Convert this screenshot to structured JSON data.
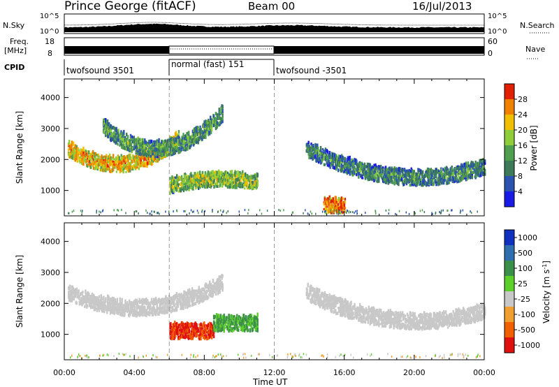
{
  "header": {
    "station": "Prince George (fitACF)",
    "beam": "Beam 00",
    "date": "16/Jul/2013"
  },
  "noise_panel": {
    "left_label": "N.Sky",
    "right_label": "N.Search",
    "left_ticks": [
      "10^5",
      "10^0"
    ],
    "right_ticks": [
      "10^5",
      "10^0"
    ]
  },
  "freq_panel": {
    "label_line1": "Freq.",
    "label_line2": "[MHz]",
    "right_label": "Nave",
    "left_ticks": [
      "18",
      "8"
    ],
    "right_ticks": [
      "60",
      "0"
    ]
  },
  "cpid": {
    "label": "CPID",
    "segments": [
      {
        "name": "twofsound 3501",
        "start_h": 0,
        "end_h": 6
      },
      {
        "name": "normal (fast) 151",
        "start_h": 6,
        "end_h": 12
      },
      {
        "name": "twofsound -3501",
        "start_h": 12,
        "end_h": 24
      }
    ]
  },
  "chart_data": [
    {
      "type": "heatmap",
      "title": "",
      "xlabel": "Time UT",
      "ylabel": "Slant Range [km]",
      "x_ticks": [
        "00:00",
        "04:00",
        "08:00",
        "12:00",
        "16:00",
        "20:00",
        "00:00"
      ],
      "xlim_hours": [
        0,
        24
      ],
      "y_ticks": [
        1000,
        2000,
        3000,
        4000
      ],
      "ylim": [
        180,
        4600
      ],
      "colorbar": {
        "label": "Power [dB]",
        "ticks": [
          4,
          8,
          12,
          16,
          20,
          24,
          28
        ],
        "colors": [
          "#1a1ae6",
          "#2a54b0",
          "#3d7a5a",
          "#4f9f4f",
          "#8fce3a",
          "#f0c000",
          "#f08000",
          "#e02000"
        ]
      },
      "echo_regions": [
        {
          "feature": "main arc",
          "t_start": 0.2,
          "t_end": 6.5,
          "range_start": 2300,
          "range_mid": 1800,
          "range_end": 2600,
          "power_db": 24
        },
        {
          "feature": "upper arc",
          "t_start": 2.2,
          "t_end": 9.0,
          "range_start": 3000,
          "range_mid": 2300,
          "range_end": 3400,
          "power_db": 14
        },
        {
          "feature": "low band",
          "t_start": 6.0,
          "t_end": 11.0,
          "range_start": 1100,
          "range_mid": 1300,
          "range_end": 1200,
          "power_db": 18
        },
        {
          "feature": "afternoon streaks",
          "t_start": 13.8,
          "t_end": 24.0,
          "range_start": 2300,
          "range_mid": 1400,
          "range_end": 1700,
          "power_db": 12
        },
        {
          "feature": "near-range patch",
          "t_start": 14.8,
          "t_end": 16.0,
          "range_start": 450,
          "range_mid": 450,
          "range_end": 450,
          "power_db": 28
        }
      ]
    },
    {
      "type": "heatmap",
      "title": "",
      "xlabel": "Time UT",
      "ylabel": "Slant Range [km]",
      "x_ticks": [
        "00:00",
        "04:00",
        "08:00",
        "12:00",
        "16:00",
        "20:00",
        "00:00"
      ],
      "xlim_hours": [
        0,
        24
      ],
      "y_ticks": [
        1000,
        2000,
        3000,
        4000
      ],
      "ylim": [
        180,
        4600
      ],
      "colorbar": {
        "label": "Velocity [m s^-1]",
        "ticks": [
          1000,
          500,
          100,
          25,
          -25,
          -100,
          -500,
          -1000
        ],
        "colors": [
          "#1030c0",
          "#2f6fb0",
          "#3c8f4a",
          "#5ccf2a",
          "#c8c8c8",
          "#f0a030",
          "#f06000",
          "#e01010"
        ]
      },
      "echo_regions": [
        {
          "feature": "ground scatter arcs",
          "t_start": 0.2,
          "t_end": 9.0,
          "range_start": 2300,
          "range_mid": 1800,
          "range_end": 2600,
          "velocity": 0
        },
        {
          "feature": "negative velocity patch",
          "t_start": 6.0,
          "t_end": 8.5,
          "range_start": 1050,
          "range_mid": 1050,
          "range_end": 1050,
          "velocity": -500
        },
        {
          "feature": "positive velocity patch",
          "t_start": 8.5,
          "t_end": 11.0,
          "range_start": 1300,
          "range_mid": 1300,
          "range_end": 1300,
          "velocity": 100
        },
        {
          "feature": "afternoon ground scatter",
          "t_start": 13.8,
          "t_end": 24.0,
          "range_start": 2300,
          "range_mid": 1400,
          "range_end": 1700,
          "velocity": 0
        }
      ]
    }
  ]
}
